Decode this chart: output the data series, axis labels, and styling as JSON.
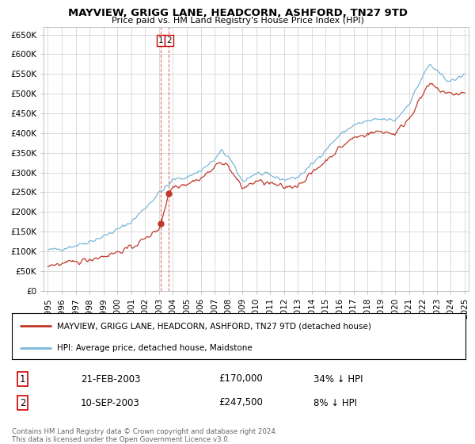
{
  "title": "MAYVIEW, GRIGG LANE, HEADCORN, ASHFORD, TN27 9TD",
  "subtitle": "Price paid vs. HM Land Registry's House Price Index (HPI)",
  "hpi_label": "HPI: Average price, detached house, Maidstone",
  "price_label": "MAYVIEW, GRIGG LANE, HEADCORN, ASHFORD, TN27 9TD (detached house)",
  "sale1_date": "21-FEB-2003",
  "sale1_price": "£170,000",
  "sale1_pct": "34% ↓ HPI",
  "sale1_year": 2003.13,
  "sale1_value": 170000,
  "sale2_date": "10-SEP-2003",
  "sale2_price": "£247,500",
  "sale2_pct": "8% ↓ HPI",
  "sale2_year": 2003.71,
  "sale2_value": 247500,
  "ylim": [
    0,
    670000
  ],
  "xlim_start": 1994.7,
  "xlim_end": 2025.3,
  "yticks": [
    0,
    50000,
    100000,
    150000,
    200000,
    250000,
    300000,
    350000,
    400000,
    450000,
    500000,
    550000,
    600000,
    650000
  ],
  "xticks": [
    1995,
    1996,
    1997,
    1998,
    1999,
    2000,
    2001,
    2002,
    2003,
    2004,
    2005,
    2006,
    2007,
    2008,
    2009,
    2010,
    2011,
    2012,
    2013,
    2014,
    2015,
    2016,
    2017,
    2018,
    2019,
    2020,
    2021,
    2022,
    2023,
    2024,
    2025
  ],
  "hpi_color": "#7ab8d9",
  "price_color": "#c0392b",
  "vline_color": "#c0392b",
  "grid_color": "#cccccc",
  "bg_color": "#ffffff",
  "footnote": "Contains HM Land Registry data © Crown copyright and database right 2024.\nThis data is licensed under the Open Government Licence v3.0."
}
